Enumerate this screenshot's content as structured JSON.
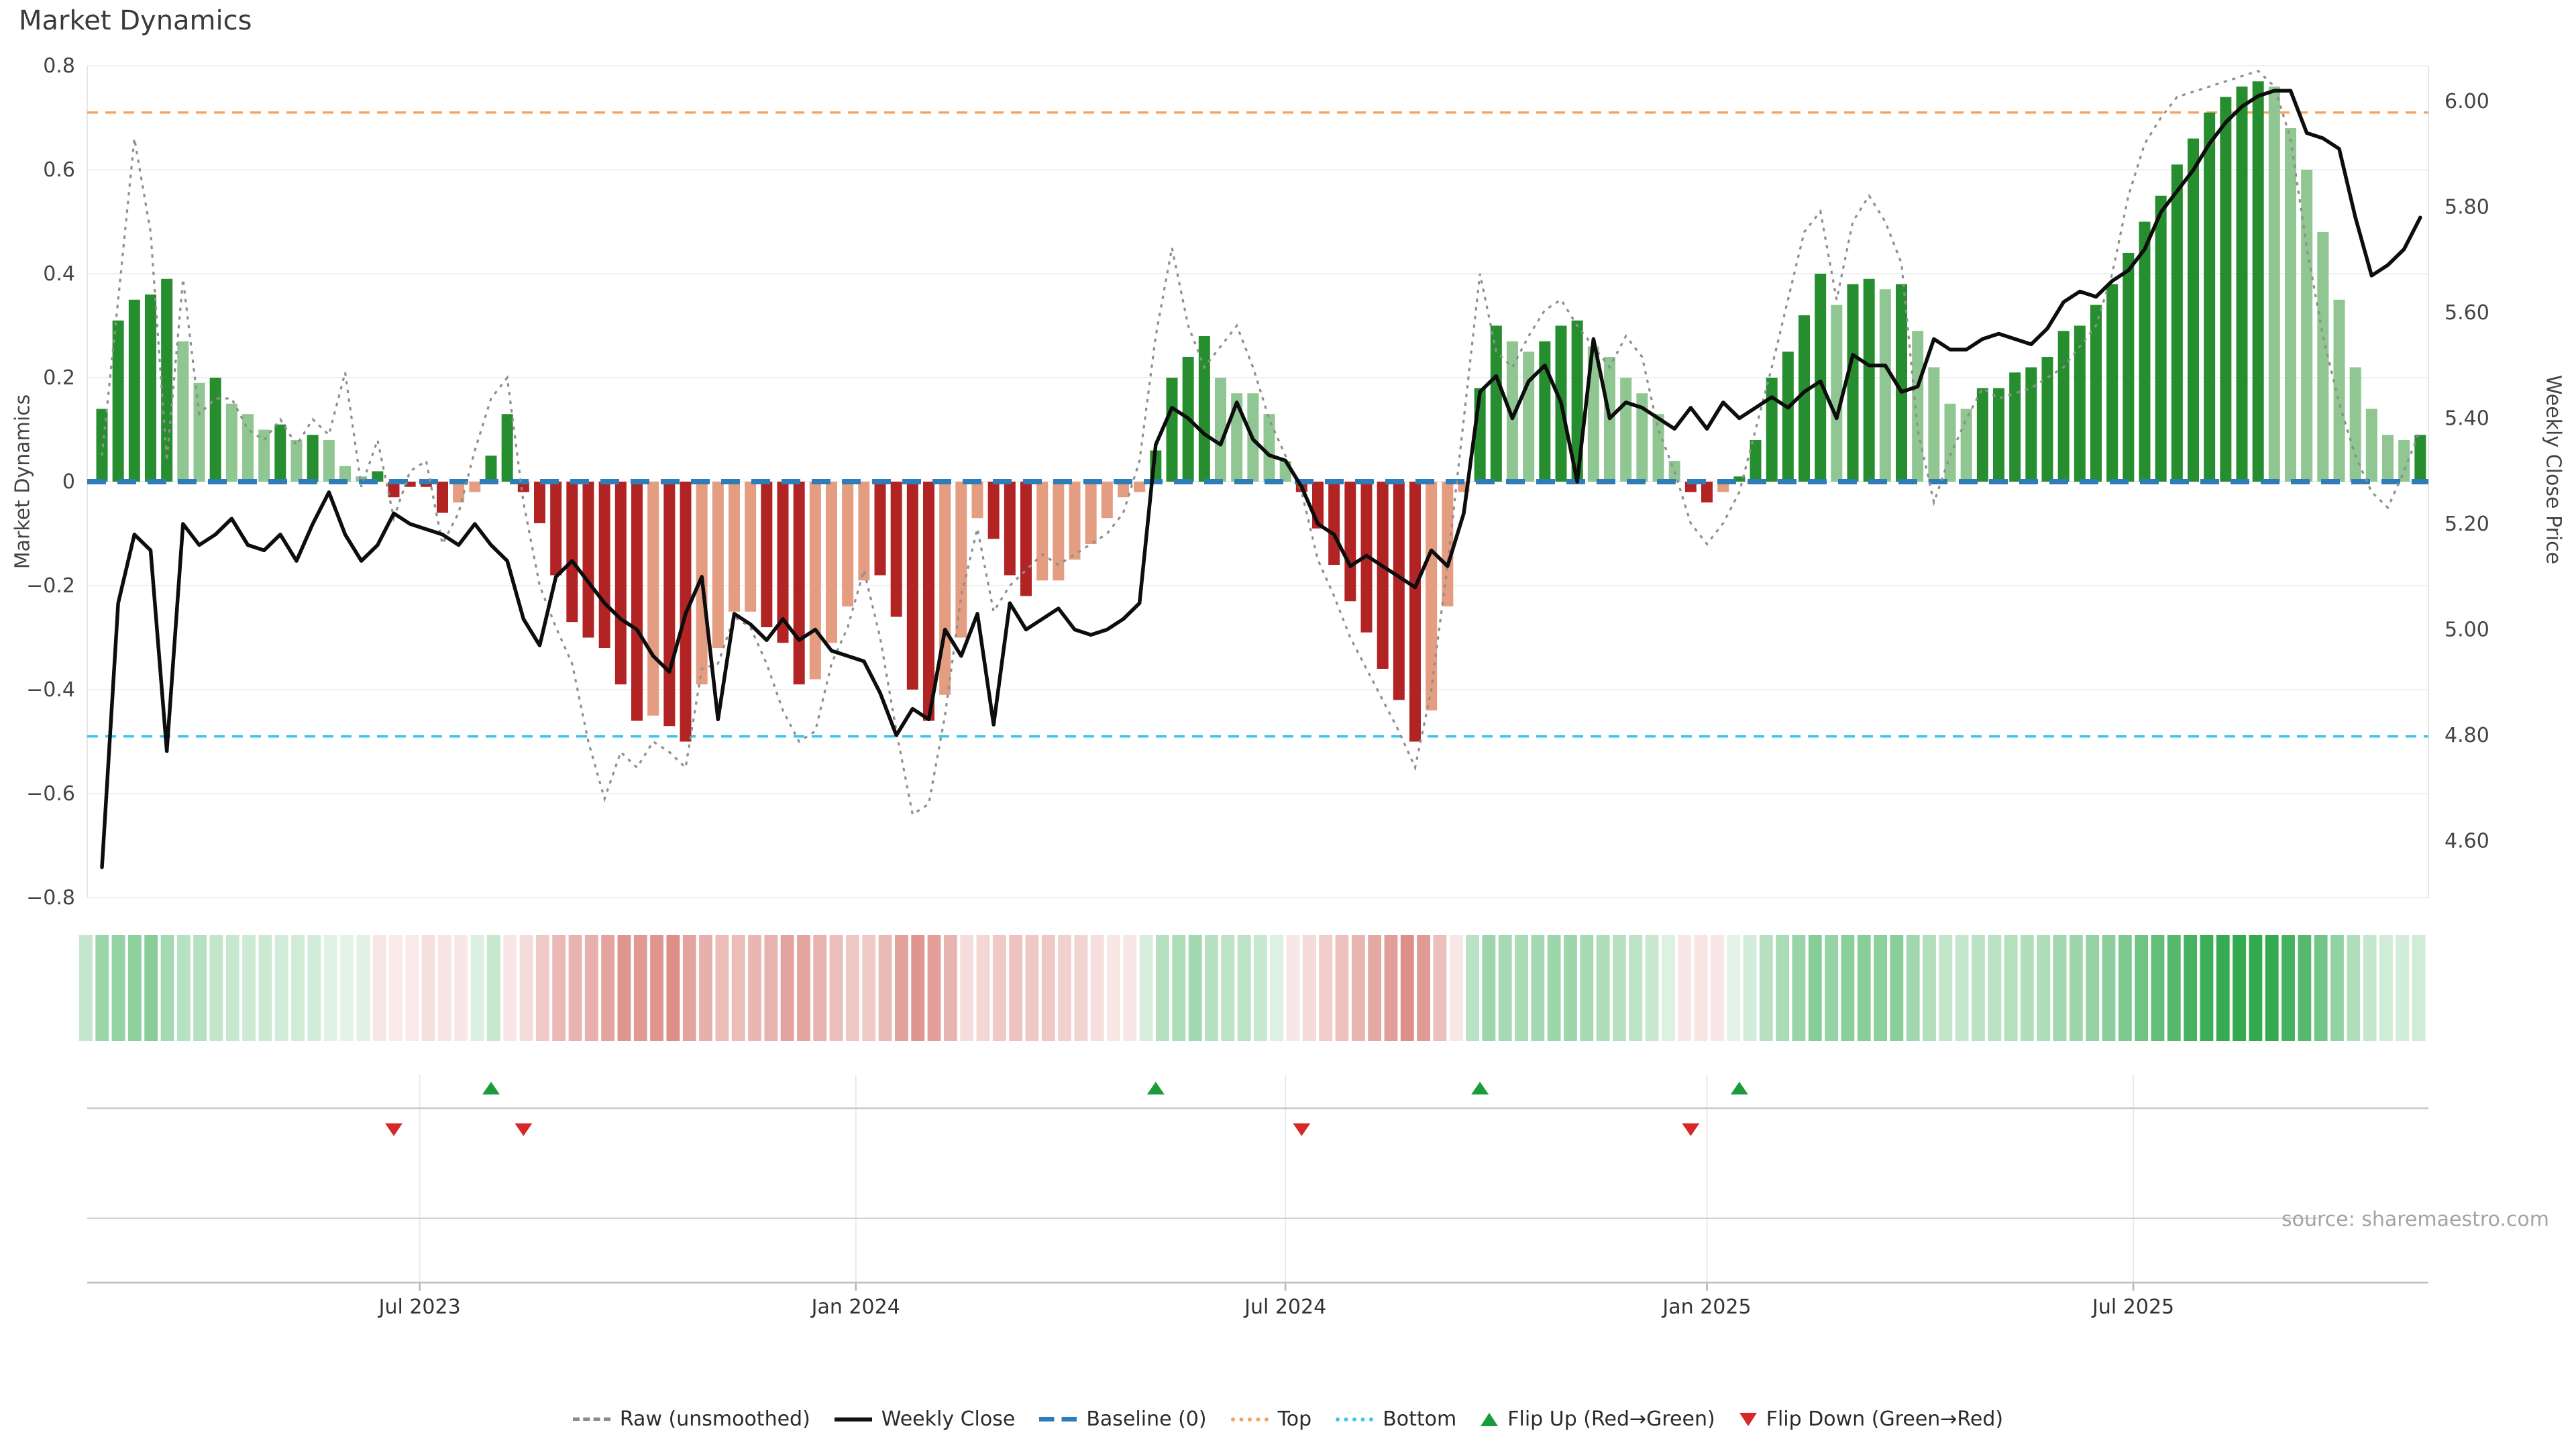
{
  "title": "Market Dynamics",
  "source": "source: sharemaestro.com",
  "colors": {
    "bar_green_dark": "#268e2e",
    "bar_green_light": "#8fc691",
    "bar_red_dark": "#b22424",
    "bar_red_light": "#e59d82",
    "baseline_blue": "#2e7cb8",
    "top_orange": "#f4a460",
    "bottom_cyan": "#3ec6ea",
    "raw_gray": "#8f8f8f",
    "price_black": "#0d0d0d",
    "flip_up_green": "#1a9c3c",
    "flip_down_red": "#d62828",
    "heat_green": "40,165,70",
    "heat_red": "205,88,78"
  },
  "y_left": {
    "title": "Market Dynamics",
    "ticks": [
      {
        "label": "0.8",
        "value": 0.8
      },
      {
        "label": "0.6",
        "value": 0.6
      },
      {
        "label": "0.4",
        "value": 0.4
      },
      {
        "label": "0.2",
        "value": 0.2
      },
      {
        "label": "0",
        "value": 0.0
      },
      {
        "label": "−0.2",
        "value": -0.2
      },
      {
        "label": "−0.4",
        "value": -0.4
      },
      {
        "label": "−0.6",
        "value": -0.6
      },
      {
        "label": "−0.8",
        "value": -0.8
      }
    ]
  },
  "y_right": {
    "title": "Weekly Close Price",
    "ticks": [
      {
        "label": "6.00",
        "value": 6.0
      },
      {
        "label": "5.80",
        "value": 5.8
      },
      {
        "label": "5.60",
        "value": 5.6
      },
      {
        "label": "5.40",
        "value": 5.4
      },
      {
        "label": "5.20",
        "value": 5.2
      },
      {
        "label": "5.00",
        "value": 5.0
      },
      {
        "label": "4.80",
        "value": 4.8
      },
      {
        "label": "4.60",
        "value": 4.6
      }
    ]
  },
  "x_axis": {
    "ticks": [
      {
        "label": "Jul 2023",
        "week": 20.1
      },
      {
        "label": "Jan 2024",
        "week": 47.0
      },
      {
        "label": "Jul 2024",
        "week": 73.5
      },
      {
        "label": "Jan 2025",
        "week": 99.5
      },
      {
        "label": "Jul 2025",
        "week": 125.8
      }
    ]
  },
  "legend": {
    "items": [
      {
        "label": "Raw (unsmoothed)",
        "glyph": "dashes"
      },
      {
        "label": "Weekly Close",
        "glyph": "line"
      },
      {
        "label": "Baseline (0)",
        "glyph": "longdash"
      },
      {
        "label": "Top",
        "glyph": "dots-orange"
      },
      {
        "label": "Bottom",
        "glyph": "dots-cyan"
      },
      {
        "label": "Flip Up (Red→Green)",
        "glyph": "tri-up"
      },
      {
        "label": "Flip Down (Green→Red)",
        "glyph": "tri-down"
      }
    ]
  },
  "chart_data": {
    "type": "combo (weekly bars + lines + heatmap strip + flip markers)",
    "x_description": "weekly observations, ~Feb 2023 to Oct 2025",
    "ylim_left": [
      -0.8,
      0.8
    ],
    "ylim_right": [
      4.5,
      6.1
    ],
    "grid": "horizontal gridlines at left-axis ticks; vertical month gridlines in lower panels",
    "legend_position": "bottom center",
    "thresholds": {
      "baseline": 0,
      "top": 0.71,
      "bottom": -0.49
    },
    "flip_up_weeks": [
      24,
      65,
      85,
      101
    ],
    "flip_down_weeks": [
      18,
      26,
      74,
      98
    ],
    "series": [
      {
        "name": "Market Dynamics (bars)",
        "values": [
          0.14,
          0.31,
          0.35,
          0.36,
          0.39,
          0.27,
          0.19,
          0.2,
          0.15,
          0.13,
          0.1,
          0.11,
          0.08,
          0.09,
          0.08,
          0.03,
          0.01,
          0.02,
          -0.03,
          -0.01,
          -0.01,
          -0.06,
          -0.04,
          -0.02,
          0.05,
          0.13,
          -0.02,
          -0.08,
          -0.18,
          -0.27,
          -0.3,
          -0.32,
          -0.39,
          -0.46,
          -0.45,
          -0.47,
          -0.5,
          -0.39,
          -0.32,
          -0.25,
          -0.25,
          -0.28,
          -0.31,
          -0.39,
          -0.38,
          -0.31,
          -0.24,
          -0.19,
          -0.18,
          -0.26,
          -0.4,
          -0.46,
          -0.41,
          -0.3,
          -0.07,
          -0.11,
          -0.18,
          -0.22,
          -0.19,
          -0.19,
          -0.15,
          -0.12,
          -0.07,
          -0.03,
          -0.02,
          0.06,
          0.2,
          0.24,
          0.28,
          0.2,
          0.17,
          0.17,
          0.13,
          0.04,
          -0.02,
          -0.09,
          -0.16,
          -0.23,
          -0.29,
          -0.36,
          -0.42,
          -0.5,
          -0.44,
          -0.24,
          -0.02,
          0.18,
          0.3,
          0.27,
          0.25,
          0.27,
          0.3,
          0.31,
          0.26,
          0.24,
          0.2,
          0.17,
          0.13,
          0.04,
          -0.02,
          -0.04,
          -0.02,
          0.01,
          0.08,
          0.2,
          0.25,
          0.32,
          0.4,
          0.34,
          0.38,
          0.39,
          0.37,
          0.38,
          0.29,
          0.22,
          0.15,
          0.14,
          0.18,
          0.18,
          0.21,
          0.22,
          0.24,
          0.29,
          0.3,
          0.34,
          0.38,
          0.44,
          0.5,
          0.55,
          0.61,
          0.66,
          0.71,
          0.74,
          0.76,
          0.77,
          0.76,
          0.68,
          0.6,
          0.48,
          0.35,
          0.22,
          0.14,
          0.09,
          0.08,
          0.09
        ]
      },
      {
        "name": "bar shade (d=dark strengthening, l=light weakening)",
        "values": [
          "d",
          "d",
          "d",
          "d",
          "d",
          "l",
          "l",
          "d",
          "l",
          "l",
          "l",
          "d",
          "l",
          "d",
          "l",
          "l",
          "l",
          "d",
          "d",
          "d",
          "d",
          "d",
          "l",
          "l",
          "d",
          "d",
          "d",
          "d",
          "d",
          "d",
          "d",
          "d",
          "d",
          "d",
          "l",
          "d",
          "d",
          "l",
          "l",
          "l",
          "l",
          "d",
          "d",
          "d",
          "l",
          "l",
          "l",
          "l",
          "d",
          "d",
          "d",
          "d",
          "l",
          "l",
          "l",
          "d",
          "d",
          "d",
          "l",
          "l",
          "l",
          "l",
          "l",
          "l",
          "l",
          "d",
          "d",
          "d",
          "d",
          "l",
          "l",
          "l",
          "l",
          "l",
          "d",
          "d",
          "d",
          "d",
          "d",
          "d",
          "d",
          "d",
          "l",
          "l",
          "l",
          "d",
          "d",
          "l",
          "l",
          "d",
          "d",
          "d",
          "l",
          "l",
          "l",
          "l",
          "l",
          "l",
          "d",
          "d",
          "l",
          "d",
          "d",
          "d",
          "d",
          "d",
          "d",
          "l",
          "d",
          "d",
          "l",
          "d",
          "l",
          "l",
          "l",
          "l",
          "d",
          "d",
          "d",
          "d",
          "d",
          "d",
          "d",
          "d",
          "d",
          "d",
          "d",
          "d",
          "d",
          "d",
          "d",
          "d",
          "d",
          "d",
          "l",
          "l",
          "l",
          "l",
          "l",
          "l",
          "l",
          "l",
          "l",
          "d"
        ]
      },
      {
        "name": "Weekly Close",
        "values": [
          4.55,
          5.05,
          5.18,
          5.15,
          4.77,
          5.2,
          5.16,
          5.18,
          5.21,
          5.16,
          5.15,
          5.18,
          5.13,
          5.2,
          5.26,
          5.18,
          5.13,
          5.16,
          5.22,
          5.2,
          5.19,
          5.18,
          5.16,
          5.2,
          5.16,
          5.13,
          5.02,
          4.97,
          5.1,
          5.13,
          5.09,
          5.05,
          5.02,
          5.0,
          4.95,
          4.92,
          5.03,
          5.1,
          4.83,
          5.03,
          5.01,
          4.98,
          5.02,
          4.98,
          5.0,
          4.96,
          4.95,
          4.94,
          4.88,
          4.8,
          4.85,
          4.83,
          5.0,
          4.95,
          5.03,
          4.82,
          5.05,
          5.0,
          5.02,
          5.04,
          5.0,
          4.99,
          5.0,
          5.02,
          5.05,
          5.35,
          5.42,
          5.4,
          5.37,
          5.35,
          5.43,
          5.36,
          5.33,
          5.32,
          5.27,
          5.2,
          5.18,
          5.12,
          5.14,
          5.12,
          5.1,
          5.08,
          5.15,
          5.12,
          5.22,
          5.45,
          5.48,
          5.4,
          5.47,
          5.5,
          5.43,
          5.28,
          5.55,
          5.4,
          5.43,
          5.42,
          5.4,
          5.38,
          5.42,
          5.38,
          5.43,
          5.4,
          5.42,
          5.44,
          5.42,
          5.45,
          5.47,
          5.4,
          5.52,
          5.5,
          5.5,
          5.45,
          5.46,
          5.55,
          5.53,
          5.53,
          5.55,
          5.56,
          5.55,
          5.54,
          5.57,
          5.62,
          5.64,
          5.63,
          5.66,
          5.68,
          5.72,
          5.79,
          5.83,
          5.87,
          5.92,
          5.96,
          5.99,
          6.01,
          6.02,
          6.02,
          5.94,
          5.93,
          5.91,
          5.78,
          5.67,
          5.69,
          5.72,
          5.78
        ]
      },
      {
        "name": "Raw (unsmoothed)",
        "values": [
          0.05,
          0.35,
          0.66,
          0.48,
          0.04,
          0.39,
          0.13,
          0.16,
          0.16,
          0.1,
          0.08,
          0.12,
          0.07,
          0.12,
          0.09,
          0.21,
          -0.01,
          0.08,
          -0.07,
          0.02,
          0.04,
          -0.12,
          -0.06,
          0.06,
          0.16,
          0.2,
          -0.04,
          -0.2,
          -0.28,
          -0.35,
          -0.5,
          -0.61,
          -0.52,
          -0.55,
          -0.5,
          -0.52,
          -0.55,
          -0.36,
          -0.35,
          -0.26,
          -0.28,
          -0.35,
          -0.44,
          -0.5,
          -0.48,
          -0.35,
          -0.28,
          -0.17,
          -0.3,
          -0.48,
          -0.64,
          -0.62,
          -0.45,
          -0.22,
          -0.09,
          -0.25,
          -0.2,
          -0.17,
          -0.14,
          -0.16,
          -0.14,
          -0.12,
          -0.1,
          -0.06,
          0.04,
          0.28,
          0.45,
          0.3,
          0.22,
          0.26,
          0.3,
          0.22,
          0.12,
          0.05,
          -0.02,
          -0.15,
          -0.22,
          -0.3,
          -0.36,
          -0.42,
          -0.48,
          -0.55,
          -0.4,
          -0.16,
          0.12,
          0.4,
          0.25,
          0.22,
          0.28,
          0.33,
          0.35,
          0.3,
          0.26,
          0.22,
          0.28,
          0.24,
          0.1,
          0.02,
          -0.08,
          -0.12,
          -0.08,
          -0.02,
          0.1,
          0.22,
          0.35,
          0.48,
          0.52,
          0.35,
          0.5,
          0.55,
          0.5,
          0.42,
          0.1,
          -0.04,
          0.05,
          0.12,
          0.18,
          0.16,
          0.17,
          0.18,
          0.2,
          0.22,
          0.26,
          0.3,
          0.4,
          0.55,
          0.65,
          0.7,
          0.74,
          0.75,
          0.76,
          0.77,
          0.78,
          0.79,
          0.76,
          0.66,
          0.45,
          0.28,
          0.15,
          0.05,
          -0.02,
          -0.05,
          0.02,
          0.1
        ]
      }
    ]
  }
}
